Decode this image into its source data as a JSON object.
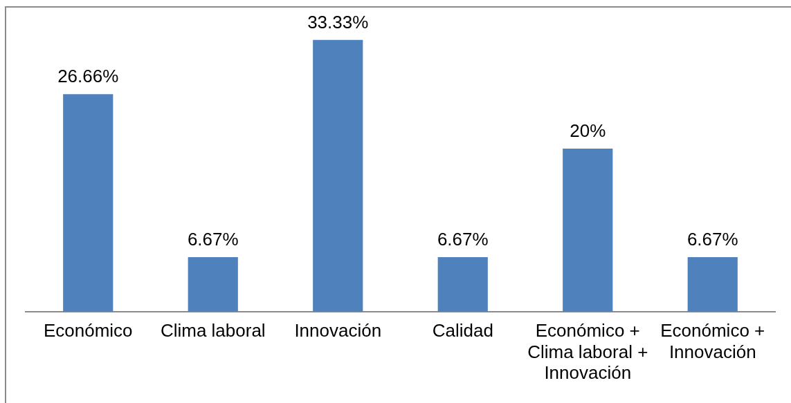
{
  "chart_data": {
    "type": "bar",
    "categories": [
      "Económico",
      "Clima laboral",
      "Innovación",
      "Calidad",
      "Económico + Clima laboral + Innovación",
      "Económico + Innovación"
    ],
    "values": [
      26.66,
      6.67,
      33.33,
      6.67,
      20,
      6.67
    ],
    "value_labels": [
      "26.66%",
      "6.67%",
      "33.33%",
      "6.67%",
      "20%",
      "6.67%"
    ],
    "color": "#4f81bd",
    "tick_labels": "x"
  }
}
